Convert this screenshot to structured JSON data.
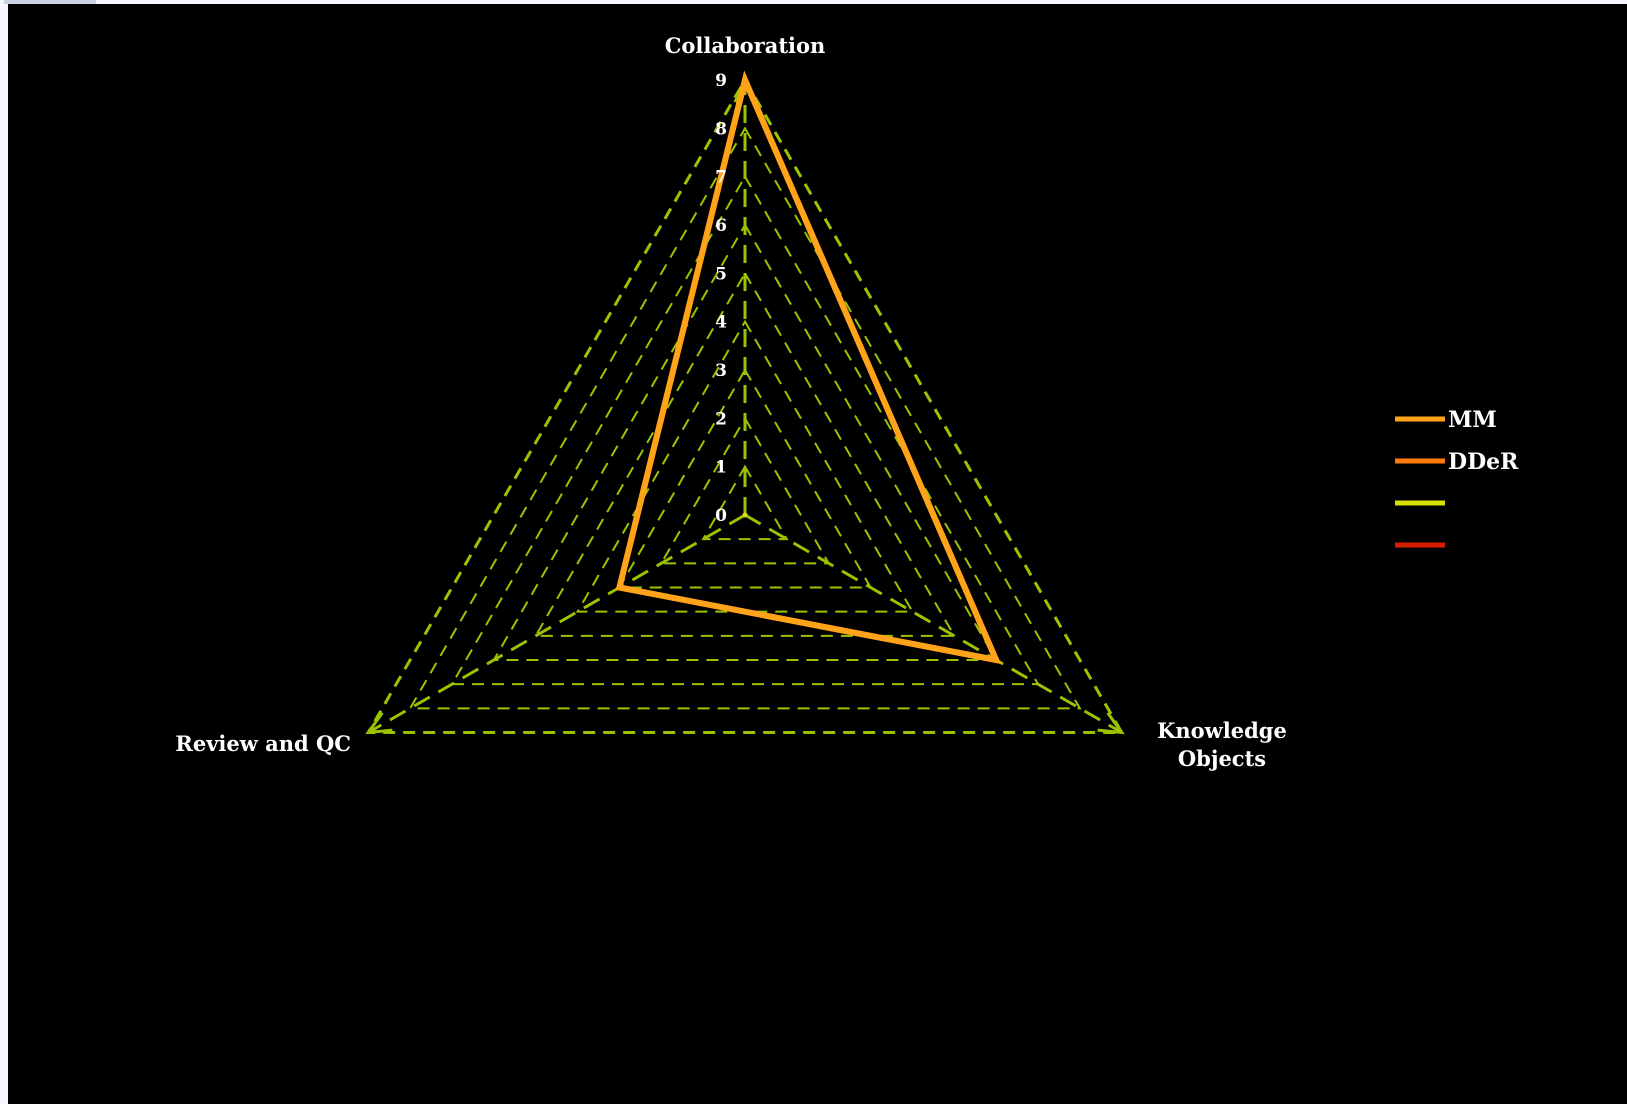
{
  "chart_data": {
    "type": "radar",
    "axes": [
      "Collaboration",
      "Knowledge Objects",
      "Review and QC"
    ],
    "axis_label_lines": [
      [
        "Collaboration"
      ],
      [
        "Knowledge",
        "Objects"
      ],
      [
        "Review and QC"
      ]
    ],
    "rlim": [
      0,
      9
    ],
    "ticks": [
      "0",
      "1",
      "2",
      "3",
      "4",
      "5",
      "6",
      "7",
      "8",
      "9"
    ],
    "grid": true,
    "grid_color": "#9bc400",
    "legend_position": "right",
    "series": [
      {
        "name": "MM",
        "color": "#ffa31a",
        "values": [
          9,
          6,
          3
        ]
      },
      {
        "name": "DDeR",
        "color": "#ff7a0a",
        "values": [
          9,
          6,
          3
        ]
      },
      {
        "name": "",
        "color": "#d8e000",
        "values": [
          0,
          0,
          0
        ]
      },
      {
        "name": "",
        "color": "#d81e00",
        "values": [
          0,
          0,
          0
        ]
      }
    ]
  }
}
